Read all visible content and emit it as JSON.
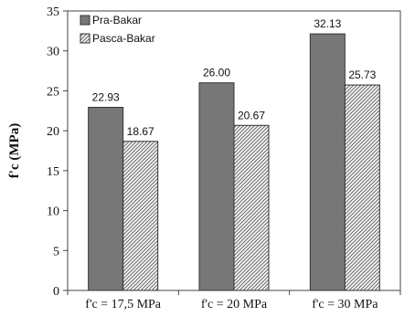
{
  "chart_data": {
    "type": "bar",
    "categories": [
      "f'c = 17,5 MPa",
      "f'c = 20 MPa",
      "f'c = 30 MPa"
    ],
    "series": [
      {
        "name": "Pra-Bakar",
        "values": [
          22.93,
          26.0,
          32.13
        ],
        "labels": [
          "22.93",
          "26.00",
          "32.13"
        ],
        "color": "#777777",
        "pattern": "solid"
      },
      {
        "name": "Pasca-Bakar",
        "values": [
          18.67,
          20.67,
          25.73
        ],
        "labels": [
          "18.67",
          "20.67",
          "25.73"
        ],
        "color": "#e8e8e8",
        "pattern": "diagonal-hatch"
      }
    ],
    "title": "",
    "xlabel": "",
    "ylabel": "f'c (MPa)",
    "ylim": [
      0,
      35
    ],
    "yticks": [
      0,
      5,
      10,
      15,
      20,
      25,
      30,
      35
    ],
    "grid": false,
    "legend": "top-left"
  }
}
